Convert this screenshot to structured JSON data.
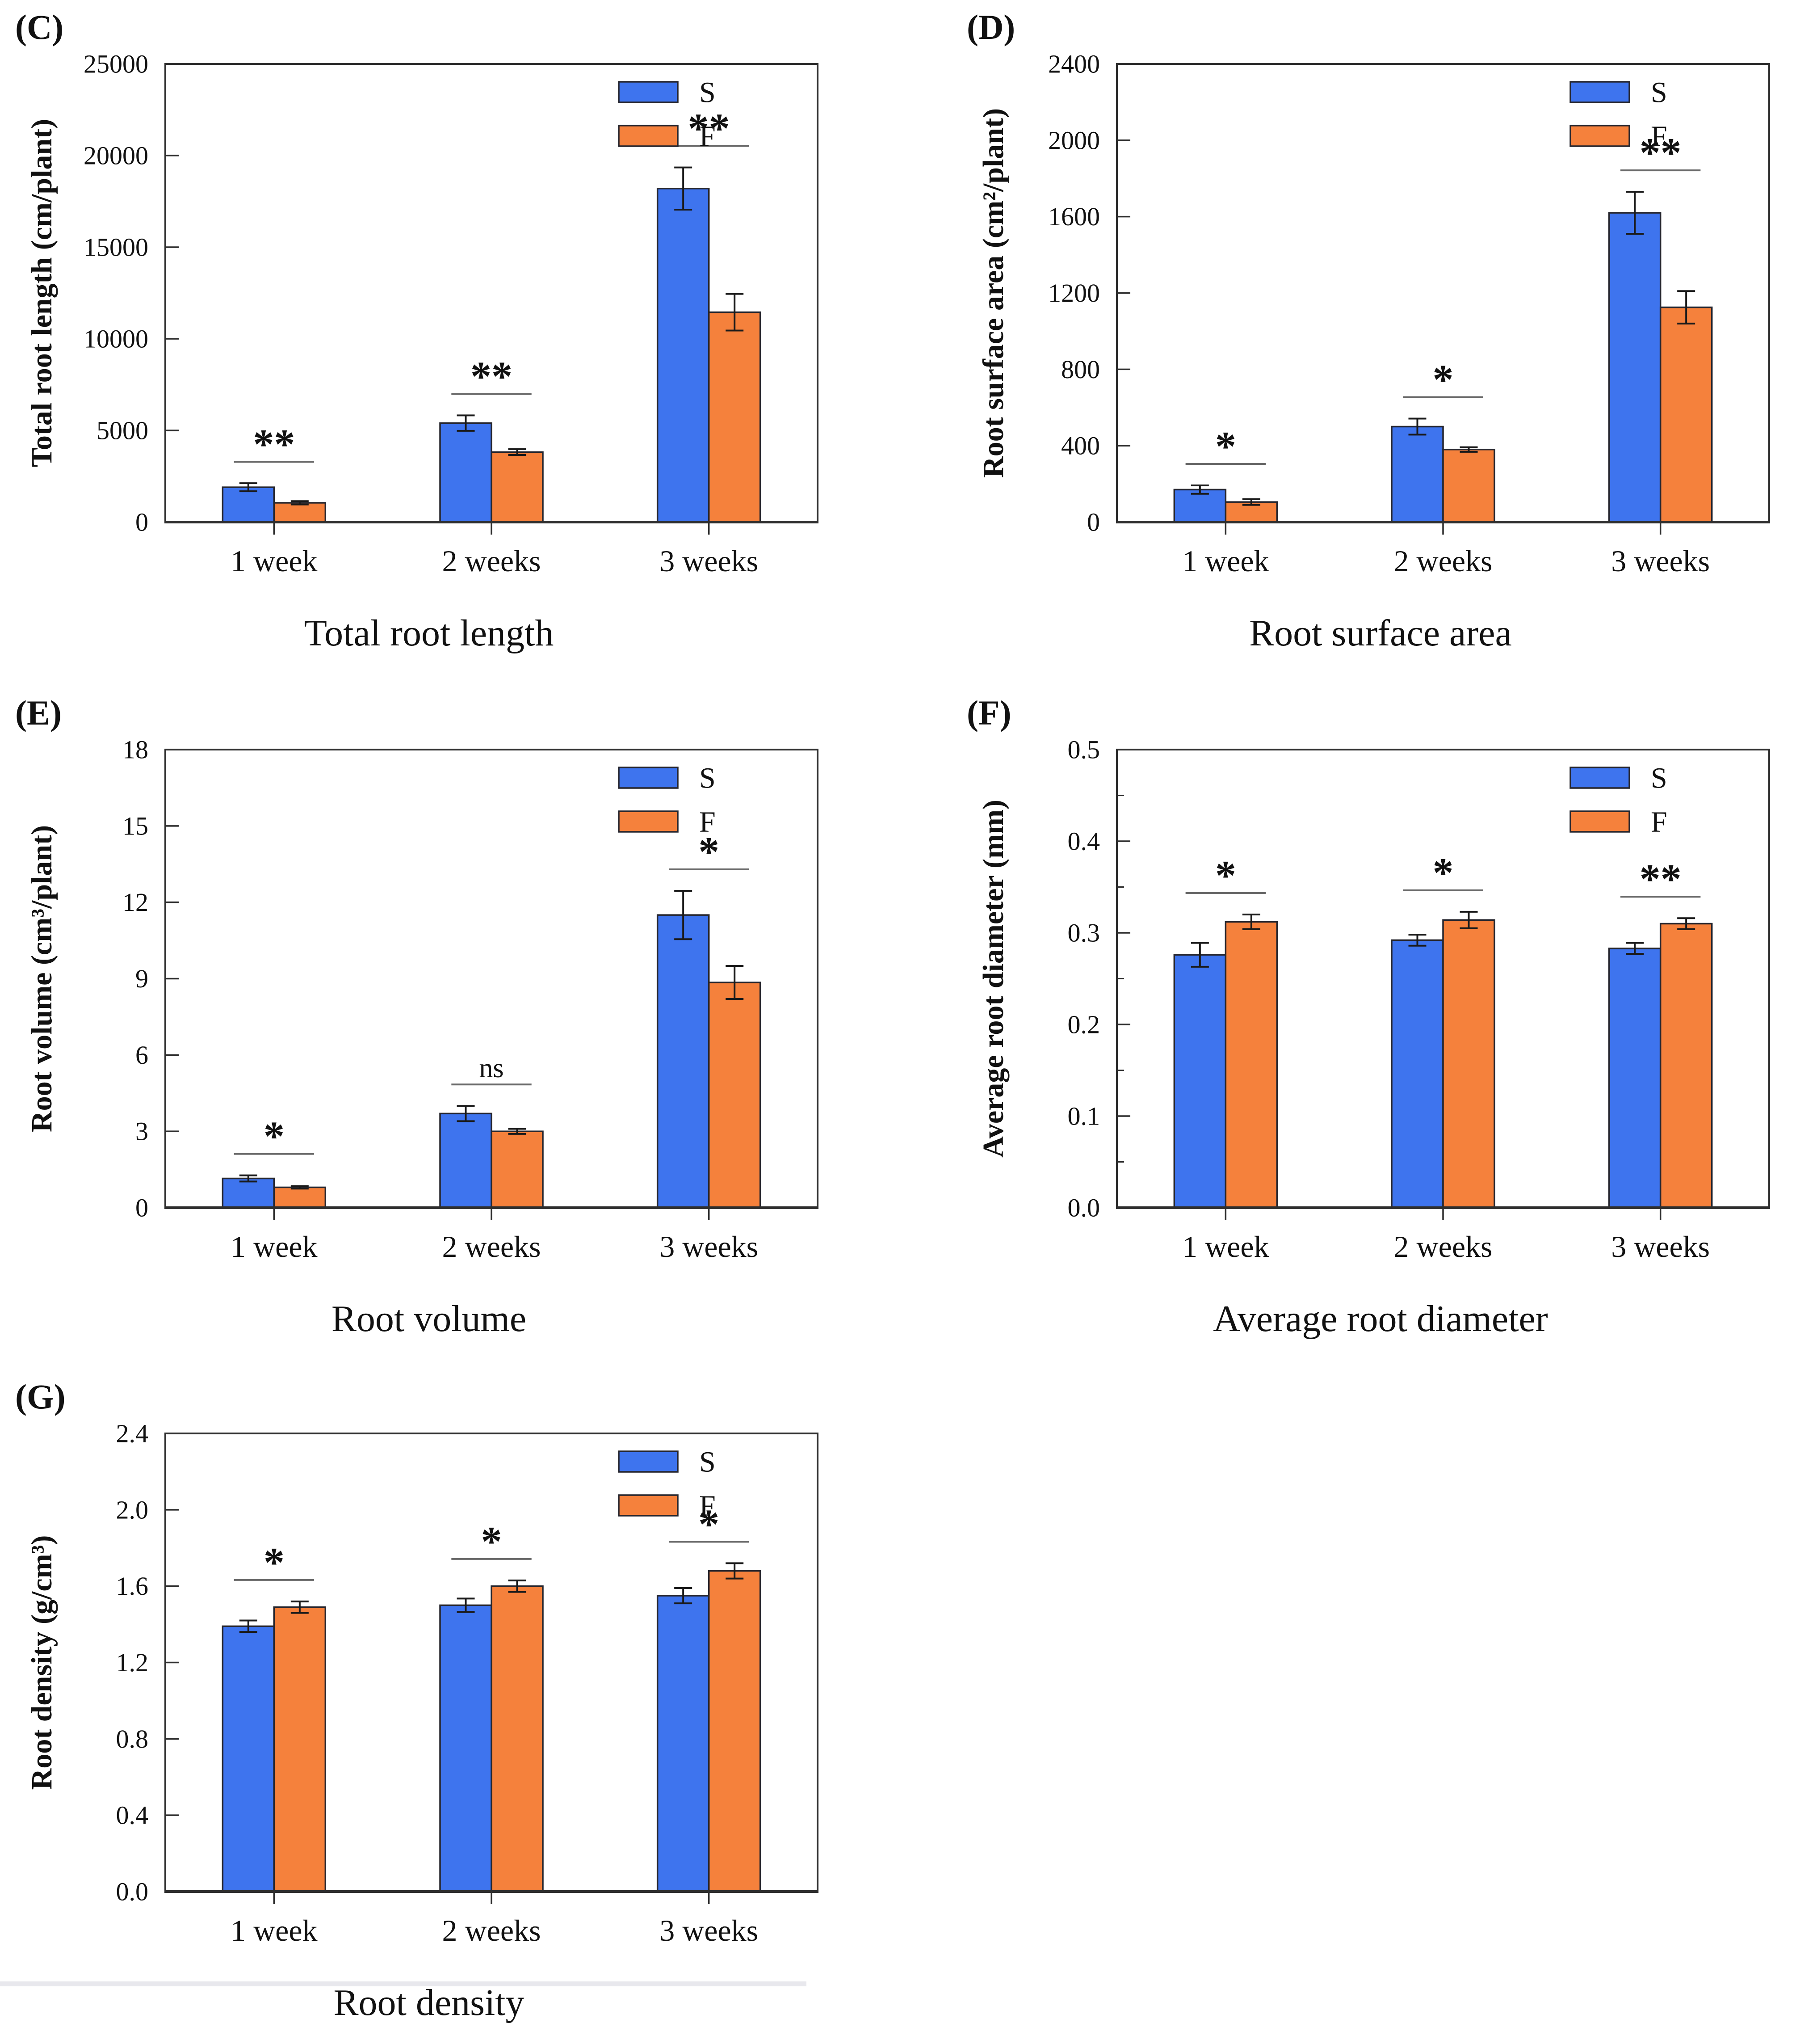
{
  "legend": {
    "items": [
      {
        "label": "S",
        "color": "#3e74ee"
      },
      {
        "label": "F",
        "color": "#f5813c"
      }
    ]
  },
  "chart_data": [
    {
      "panel_label": "(C)",
      "type": "bar",
      "title": "Total root length",
      "ylabel": "Total root length (cm/plant)",
      "categories": [
        "1 week",
        "2 weeks",
        "3 weeks"
      ],
      "ylim": [
        0,
        25000
      ],
      "yticks": [
        {
          "v": 0,
          "label": "0"
        },
        {
          "v": 5000,
          "label": "5000"
        },
        {
          "v": 10000,
          "label": "10000"
        },
        {
          "v": 15000,
          "label": "15000"
        },
        {
          "v": 20000,
          "label": "20000"
        },
        {
          "v": 25000,
          "label": "25000"
        }
      ],
      "yminor": [],
      "series": [
        {
          "name": "S",
          "values": [
            1900,
            5400,
            18200
          ],
          "errors": [
            220,
            420,
            1150
          ]
        },
        {
          "name": "F",
          "values": [
            1050,
            3820,
            11450
          ],
          "errors": [
            90,
            160,
            1000
          ]
        }
      ],
      "significance": [
        "**",
        "**",
        "**"
      ],
      "legend_position": "top-right",
      "grid": false
    },
    {
      "panel_label": "(D)",
      "type": "bar",
      "title": "Root surface area",
      "ylabel": "Root surface area (cm²/plant)",
      "categories": [
        "1 week",
        "2 weeks",
        "3 weeks"
      ],
      "ylim": [
        0,
        2400
      ],
      "yticks": [
        {
          "v": 0,
          "label": "0"
        },
        {
          "v": 400,
          "label": "400"
        },
        {
          "v": 800,
          "label": "800"
        },
        {
          "v": 1200,
          "label": "1200"
        },
        {
          "v": 1600,
          "label": "1600"
        },
        {
          "v": 2000,
          "label": "2000"
        },
        {
          "v": 2400,
          "label": "2400"
        }
      ],
      "yminor": [],
      "series": [
        {
          "name": "S",
          "values": [
            170,
            500,
            1620
          ],
          "errors": [
            22,
            42,
            110
          ]
        },
        {
          "name": "F",
          "values": [
            105,
            380,
            1125
          ],
          "errors": [
            15,
            12,
            85
          ]
        }
      ],
      "significance": [
        "*",
        "*",
        "**"
      ],
      "legend_position": "top-right",
      "grid": false
    },
    {
      "panel_label": "(E)",
      "type": "bar",
      "title": "Root volume",
      "ylabel": "Root volume (cm³/plant)",
      "categories": [
        "1 week",
        "2 weeks",
        "3 weeks"
      ],
      "ylim": [
        0,
        18
      ],
      "yticks": [
        {
          "v": 0,
          "label": "0"
        },
        {
          "v": 3,
          "label": "3"
        },
        {
          "v": 6,
          "label": "6"
        },
        {
          "v": 9,
          "label": "9"
        },
        {
          "v": 12,
          "label": "12"
        },
        {
          "v": 15,
          "label": "15"
        },
        {
          "v": 18,
          "label": "18"
        }
      ],
      "yminor": [],
      "series": [
        {
          "name": "S",
          "values": [
            1.15,
            3.7,
            11.5
          ],
          "errors": [
            0.12,
            0.3,
            0.95
          ]
        },
        {
          "name": "F",
          "values": [
            0.8,
            3.0,
            8.85
          ],
          "errors": [
            0.05,
            0.1,
            0.65
          ]
        }
      ],
      "significance": [
        "*",
        "ns",
        "*"
      ],
      "legend_position": "top-right",
      "grid": false
    },
    {
      "panel_label": "(F)",
      "type": "bar",
      "title": "Average root diameter",
      "ylabel": "Average root diameter (mm)",
      "categories": [
        "1 week",
        "2 weeks",
        "3 weeks"
      ],
      "ylim": [
        0,
        0.5
      ],
      "yticks": [
        {
          "v": 0,
          "label": "0.0"
        },
        {
          "v": 0.1,
          "label": "0.1"
        },
        {
          "v": 0.2,
          "label": "0.2"
        },
        {
          "v": 0.3,
          "label": "0.3"
        },
        {
          "v": 0.4,
          "label": "0.4"
        },
        {
          "v": 0.5,
          "label": "0.5"
        }
      ],
      "yminor": [
        0.05,
        0.15,
        0.25,
        0.35,
        0.45
      ],
      "series": [
        {
          "name": "S",
          "values": [
            0.276,
            0.292,
            0.283
          ],
          "errors": [
            0.013,
            0.006,
            0.006
          ]
        },
        {
          "name": "F",
          "values": [
            0.312,
            0.314,
            0.31
          ],
          "errors": [
            0.008,
            0.009,
            0.006
          ]
        }
      ],
      "significance": [
        "*",
        "*",
        "**"
      ],
      "legend_position": "top-right",
      "grid": false
    },
    {
      "panel_label": "(G)",
      "type": "bar",
      "title": "Root density",
      "ylabel": "Root density (g/cm³)",
      "categories": [
        "1 week",
        "2 weeks",
        "3 weeks"
      ],
      "ylim": [
        0,
        2.4
      ],
      "yticks": [
        {
          "v": 0,
          "label": "0.0"
        },
        {
          "v": 0.4,
          "label": "0.4"
        },
        {
          "v": 0.8,
          "label": "0.8"
        },
        {
          "v": 1.2,
          "label": "1.2"
        },
        {
          "v": 1.6,
          "label": "1.6"
        },
        {
          "v": 2.0,
          "label": "2.0"
        },
        {
          "v": 2.4,
          "label": "2.4"
        }
      ],
      "yminor": [],
      "series": [
        {
          "name": "S",
          "values": [
            1.39,
            1.5,
            1.55
          ],
          "errors": [
            0.03,
            0.035,
            0.04
          ]
        },
        {
          "name": "F",
          "values": [
            1.49,
            1.6,
            1.68
          ],
          "errors": [
            0.03,
            0.03,
            0.04
          ]
        }
      ],
      "significance": [
        "*",
        "*",
        "*"
      ],
      "legend_position": "top-right",
      "grid": false
    }
  ]
}
